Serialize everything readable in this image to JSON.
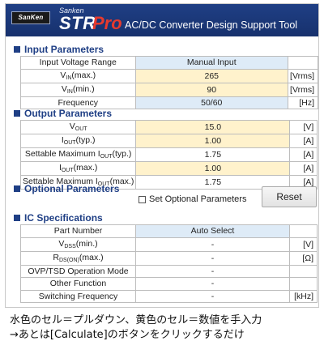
{
  "header": {
    "logo_text": "SanKen",
    "brand_small": "Sanken",
    "brand_str": "STR",
    "brand_pro": "Pro",
    "app_title": "AC/DC Converter Design Support Tool"
  },
  "input_parameters": {
    "title": "Input Parameters",
    "rows": [
      {
        "label": "Input Voltage Range",
        "value": "Manual Input",
        "unit": ""
      },
      {
        "label": "V",
        "sub": "IN",
        "suffix": "(max.)",
        "value": "265",
        "unit": "[Vrms]"
      },
      {
        "label": "V",
        "sub": "IN",
        "suffix": "(min.)",
        "value": "90",
        "unit": "[Vrms]"
      },
      {
        "label": "Frequency",
        "value": "50/60",
        "unit": "[Hz]"
      }
    ]
  },
  "output_parameters": {
    "title": "Output Parameters",
    "rows": [
      {
        "label": "V",
        "sub": "OUT",
        "suffix": "",
        "value": "15.0",
        "unit": "[V]"
      },
      {
        "label": "I",
        "sub": "OUT",
        "suffix": "(typ.)",
        "value": "1.00",
        "unit": "[A]"
      },
      {
        "label": "Settable Maximum I",
        "sub": "OUT",
        "suffix": "(typ.)",
        "value": "1.75",
        "unit": "[A]"
      },
      {
        "label": "I",
        "sub": "OUT",
        "suffix": "(max.)",
        "value": "1.00",
        "unit": "[A]"
      },
      {
        "label": "Settable Maximum I",
        "sub": "OUT",
        "suffix": "(max.)",
        "value": "1.75",
        "unit": "[A]"
      }
    ]
  },
  "optional_parameters": {
    "title": "Optional Parameters",
    "checkbox_label": "Set Optional Parameters",
    "reset_label": "Reset"
  },
  "ic_specifications": {
    "title": "IC Specifications",
    "rows": [
      {
        "label": "Part Number",
        "value": "Auto Select",
        "unit": ""
      },
      {
        "label": "V",
        "sub": "DSS",
        "suffix": "(min.)",
        "value": "-",
        "unit": "[V]"
      },
      {
        "label": "R",
        "sub": "DS(ON)",
        "suffix": "(max.)",
        "value": "-",
        "unit": "[Ω]"
      },
      {
        "label": "OVP/TSD Operation Mode",
        "value": "-",
        "unit": ""
      },
      {
        "label": "Other Function",
        "value": "-",
        "unit": ""
      },
      {
        "label": "Switching Frequency",
        "value": "-",
        "unit": "[kHz]"
      }
    ]
  },
  "caption": {
    "line1": "水色のセル＝プルダウン、黄色のセル＝数値を手入力",
    "line2": "→あとは[Calculate]のボタンをクリックするだけ"
  },
  "colors": {
    "header_bg": "#1f3f85",
    "pulldown_cell": "#deebf7",
    "input_cell": "#fff2cc",
    "brand_pro": "#e63a2e"
  }
}
